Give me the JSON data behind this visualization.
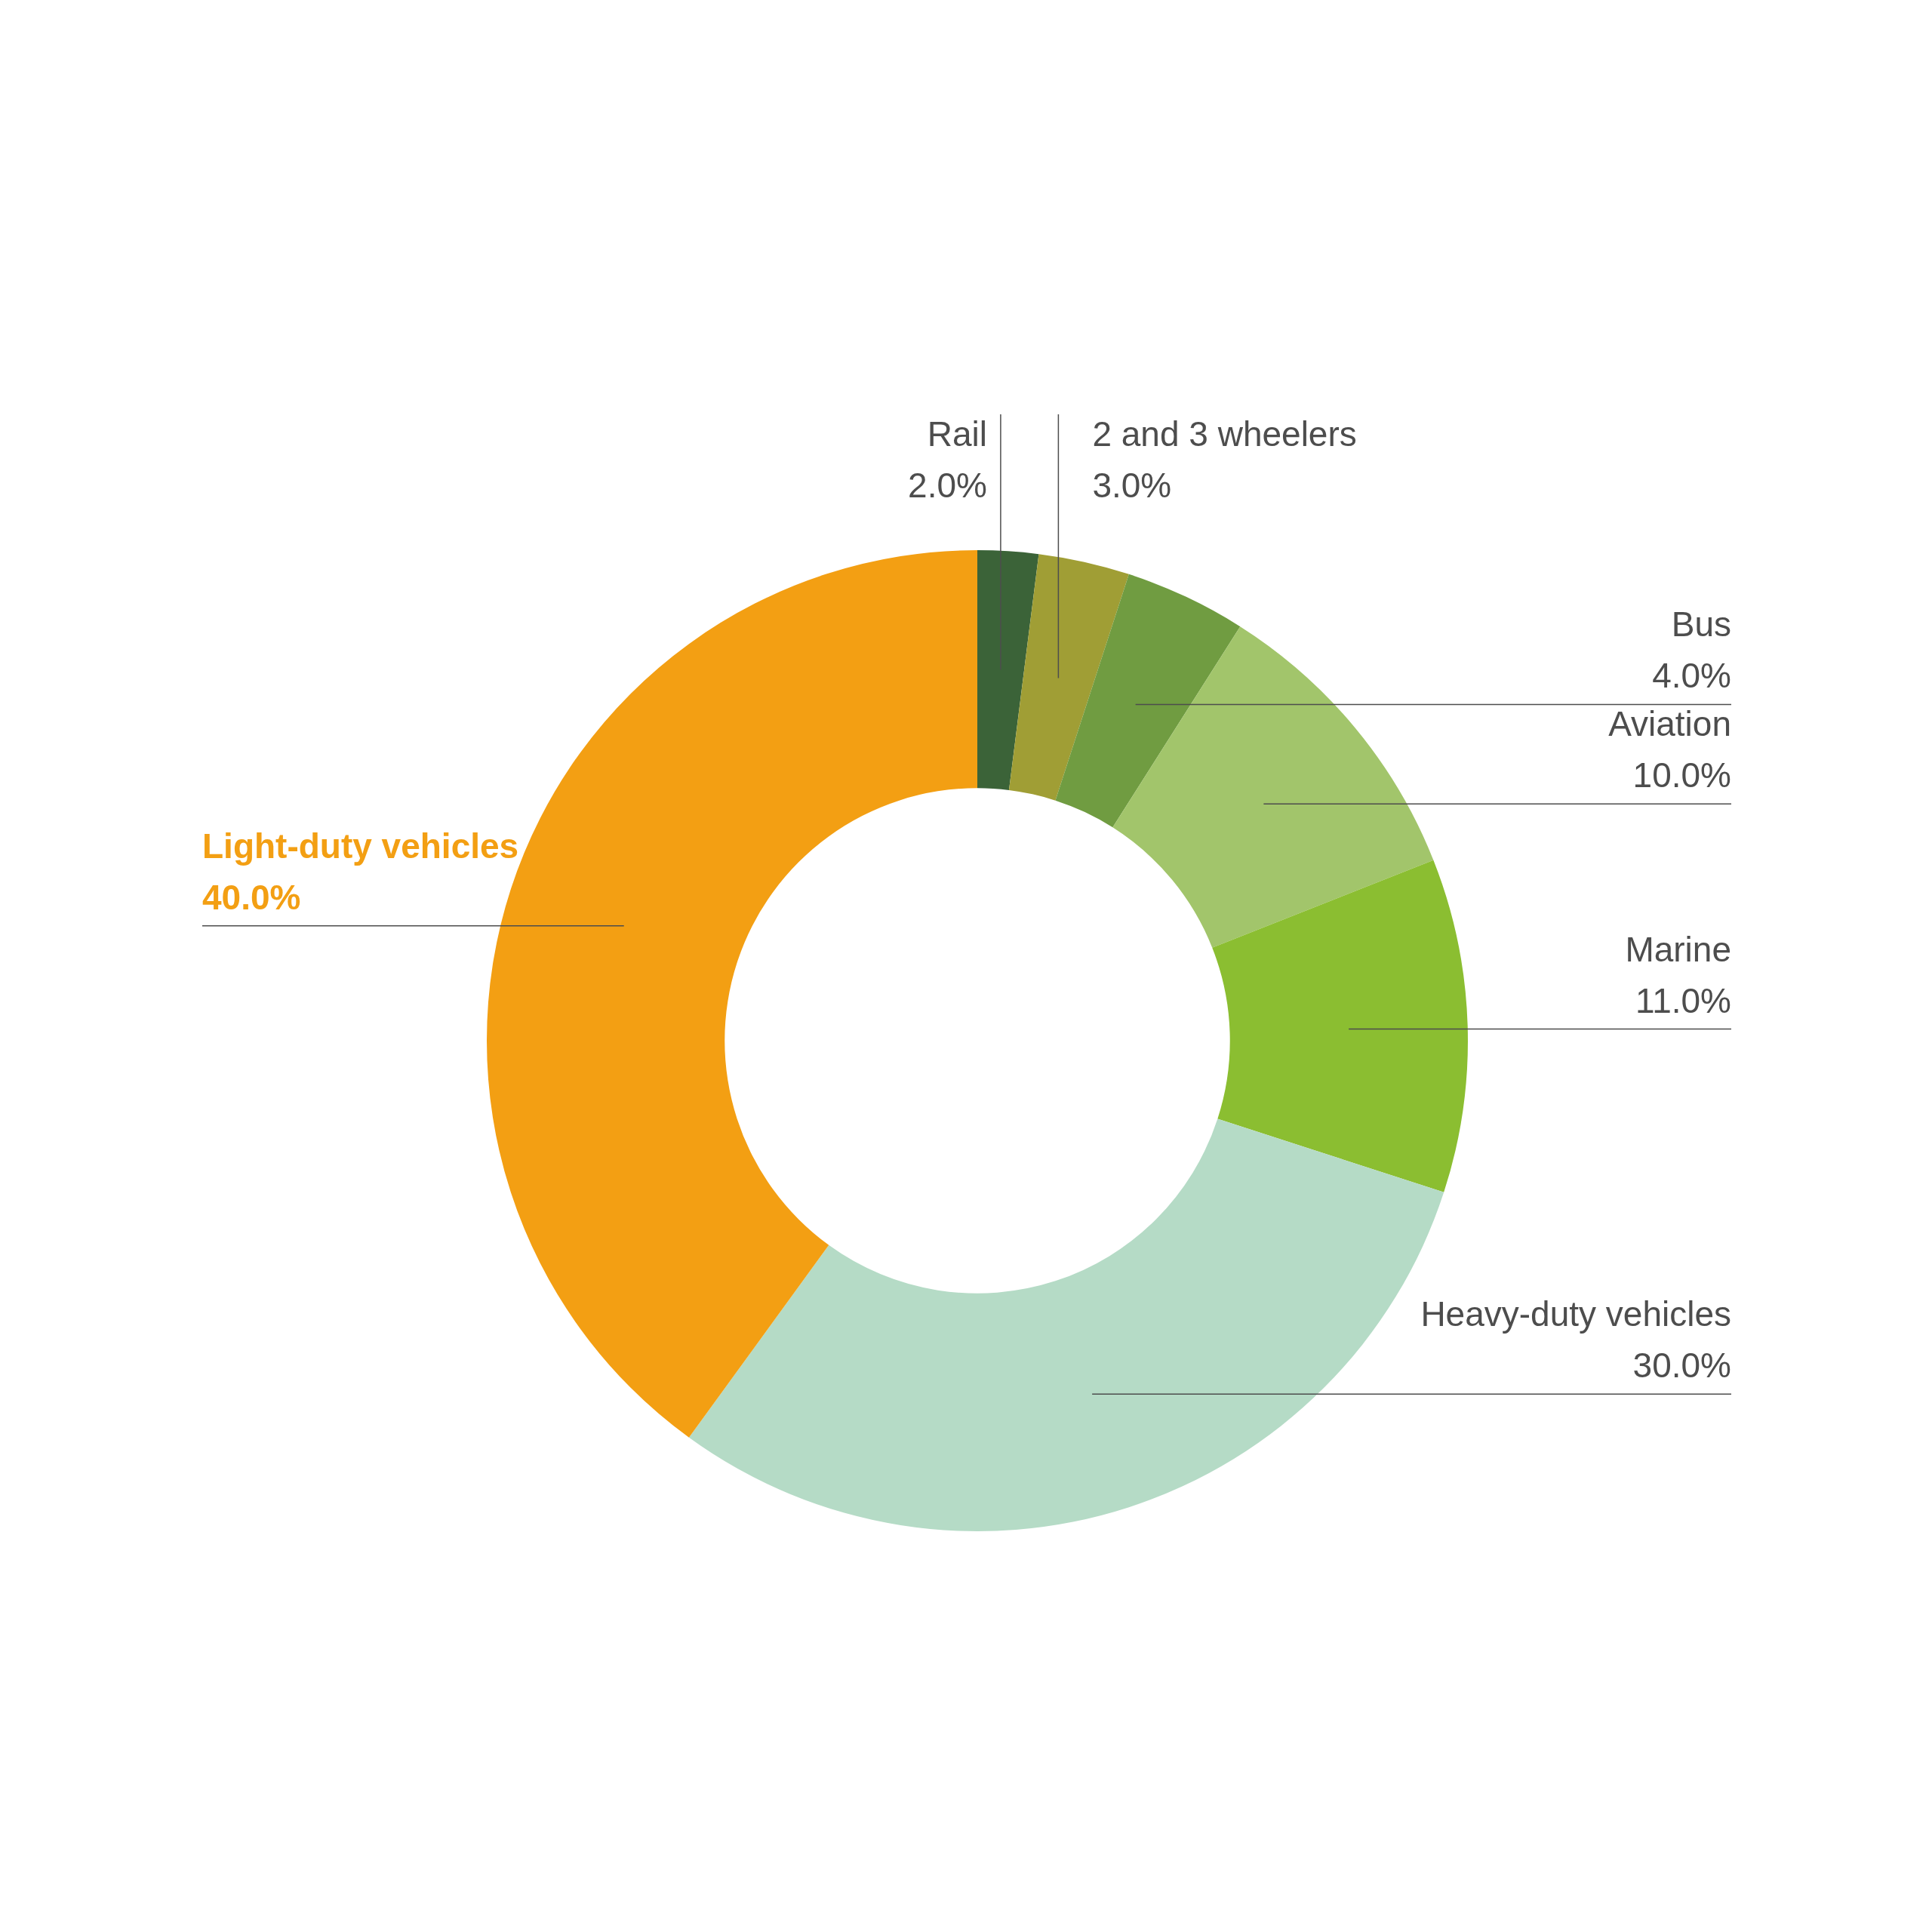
{
  "chart_data": {
    "type": "donut",
    "categories": [
      "Rail",
      "2 and 3 wheelers",
      "Bus",
      "Aviation",
      "Marine",
      "Heavy-duty vehicles",
      "Light-duty vehicles"
    ],
    "values": [
      2,
      3,
      4,
      10,
      11,
      30,
      40
    ],
    "colors": [
      "#3b6338",
      "#a09e35",
      "#709c41",
      "#a2c56b",
      "#8bbe31",
      "#b5dbc6",
      "#f39f13"
    ],
    "value_labels": [
      "2.0%",
      "3.0%",
      "4.0%",
      "10.0%",
      "11.0%",
      "30.0%",
      "40.0%"
    ]
  }
}
